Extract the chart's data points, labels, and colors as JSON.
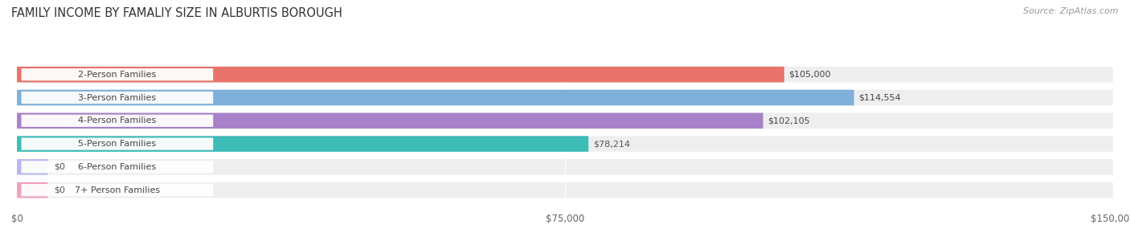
{
  "title": "FAMILY INCOME BY FAMALIY SIZE IN ALBURTIS BOROUGH",
  "source": "Source: ZipAtlas.com",
  "categories": [
    "2-Person Families",
    "3-Person Families",
    "4-Person Families",
    "5-Person Families",
    "6-Person Families",
    "7+ Person Families"
  ],
  "values": [
    105000,
    114554,
    102105,
    78214,
    0,
    0
  ],
  "bar_colors": [
    "#E8736A",
    "#7EB0D9",
    "#A882C8",
    "#3DBCB8",
    "#B8B8F0",
    "#F0A0C0"
  ],
  "value_label_colors": [
    "white",
    "white",
    "white",
    "#555555",
    "#555555",
    "#555555"
  ],
  "value_labels": [
    "$105,000",
    "$114,554",
    "$102,105",
    "$78,214",
    "$0",
    "$0"
  ],
  "x_ticks": [
    0,
    75000,
    150000
  ],
  "x_tick_labels": [
    "$0",
    "$75,000",
    "$150,000"
  ],
  "xlim": [
    0,
    150000
  ],
  "background_color": "#ffffff",
  "bar_bg_color": "#eeeeee",
  "title_fontsize": 10.5,
  "source_fontsize": 8,
  "label_fontsize": 8,
  "value_fontsize": 8
}
